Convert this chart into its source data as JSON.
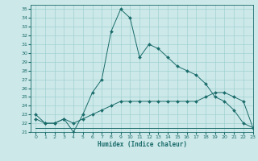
{
  "xlabel": "Humidex (Indice chaleur)",
  "bg_color": "#cce8e8",
  "grid_color": "#99cccc",
  "line_color": "#1a6b6b",
  "xlim": [
    -0.5,
    23
  ],
  "ylim": [
    21,
    35.5
  ],
  "xticks": [
    0,
    1,
    2,
    3,
    4,
    5,
    6,
    7,
    8,
    9,
    10,
    11,
    12,
    13,
    14,
    15,
    16,
    17,
    18,
    19,
    20,
    21,
    22,
    23
  ],
  "yticks": [
    21,
    22,
    23,
    24,
    25,
    26,
    27,
    28,
    29,
    30,
    31,
    32,
    33,
    34,
    35
  ],
  "line1_x": [
    0,
    1,
    2,
    3,
    4,
    5,
    6,
    7,
    8,
    9,
    10,
    11,
    12,
    13,
    14,
    15,
    16,
    17,
    18,
    19,
    20,
    21,
    22,
    23
  ],
  "line1_y": [
    23.0,
    22.0,
    22.0,
    22.5,
    21.0,
    23.0,
    25.5,
    27.0,
    32.5,
    35.0,
    34.0,
    29.5,
    31.0,
    30.5,
    29.5,
    28.5,
    28.0,
    27.5,
    26.5,
    25.0,
    24.5,
    23.5,
    22.0,
    21.5
  ],
  "line2_x": [
    0,
    1,
    2,
    3,
    4,
    5,
    6,
    7,
    8,
    9,
    10,
    11,
    12,
    13,
    14,
    15,
    16,
    17,
    18,
    19,
    20,
    21,
    22,
    23
  ],
  "line2_y": [
    22.5,
    22.0,
    22.0,
    22.5,
    22.0,
    22.5,
    23.0,
    23.5,
    24.0,
    24.5,
    24.5,
    24.5,
    24.5,
    24.5,
    24.5,
    24.5,
    24.5,
    24.5,
    25.0,
    25.5,
    25.5,
    25.0,
    24.5,
    21.5
  ],
  "line3_x": [
    0,
    23
  ],
  "line3_y": [
    21.5,
    21.5
  ],
  "marker_size": 2.0,
  "line_width": 0.7,
  "tick_fontsize": 4.5,
  "xlabel_fontsize": 5.5
}
